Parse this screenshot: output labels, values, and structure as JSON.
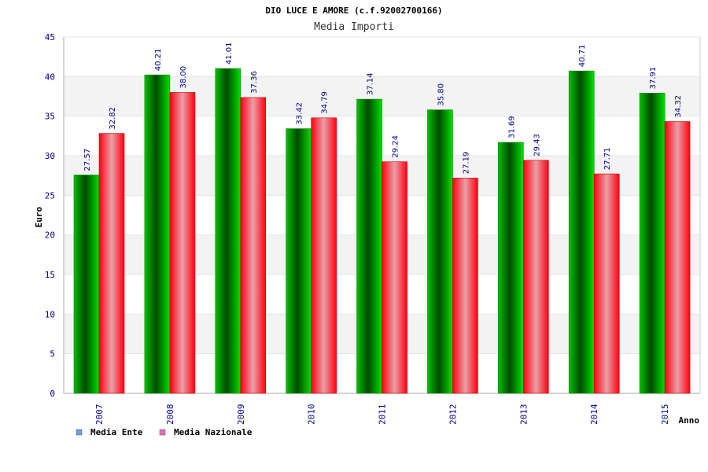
{
  "chart_data": {
    "type": "bar",
    "title": "DIO LUCE E AMORE (c.f.92002700166)",
    "subtitle": "Media Importi",
    "xlabel": "Anno",
    "ylabel": "Euro",
    "categories": [
      "2007",
      "2008",
      "2009",
      "2010",
      "2011",
      "2012",
      "2013",
      "2014",
      "2015"
    ],
    "series": [
      {
        "name": "Media Ente",
        "values": [
          27.57,
          40.21,
          41.01,
          33.42,
          37.14,
          35.8,
          31.69,
          40.71,
          37.91
        ],
        "labels": [
          "27.57",
          "40.21",
          "41.01",
          "33.42",
          "37.14",
          "35.80",
          "31.69",
          "40.71",
          "37.91"
        ]
      },
      {
        "name": "Media Nazionale",
        "values": [
          32.82,
          38.0,
          37.36,
          34.79,
          29.24,
          27.19,
          29.43,
          27.71,
          34.32
        ],
        "labels": [
          "32.82",
          "38.00",
          "37.36",
          "34.79",
          "29.24",
          "27.19",
          "29.43",
          "27.71",
          "34.32"
        ]
      }
    ],
    "ylim": [
      0,
      45
    ],
    "yticks": [
      "0",
      "5",
      "10",
      "15",
      "20",
      "25",
      "30",
      "35",
      "40",
      "45"
    ],
    "grid": true,
    "legend_position": "bottom-left",
    "colors": {
      "ente": "#00c000",
      "ente_dark": "#004a00",
      "nazionale": "#ff1020",
      "nazionale_light": "#e8a0a8",
      "legend_ente": "#6aa0e8",
      "legend_nazionale": "#e070b8",
      "band": "#f3f3f3"
    }
  }
}
